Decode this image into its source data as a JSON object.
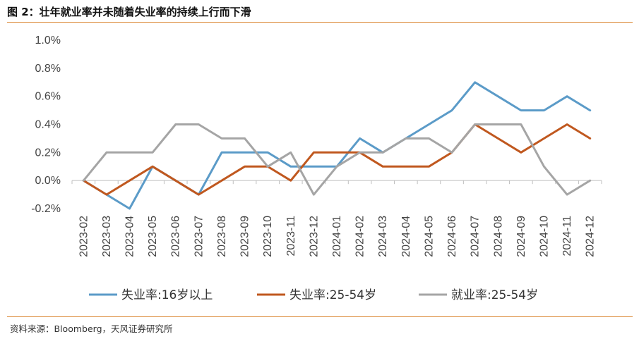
{
  "figure": {
    "title": "图 2：壮年就业率并未随着失业率的持续上行而下滑",
    "source": "资料来源：Bloomberg，天风证券研究所"
  },
  "chart_data": {
    "type": "line",
    "categories": [
      "2023-02",
      "2023-03",
      "2023-04",
      "2023-05",
      "2023-06",
      "2023-07",
      "2023-08",
      "2023-09",
      "2023-10",
      "2023-11",
      "2023-12",
      "2024-01",
      "2024-02",
      "2024-03",
      "2024-04",
      "2024-05",
      "2024-06",
      "2024-07",
      "2024-08",
      "2024-09",
      "2024-10",
      "2024-11",
      "2024-12"
    ],
    "ylim": [
      -0.2,
      1.0
    ],
    "yticks": [
      "-0.2%",
      "0.0%",
      "0.2%",
      "0.4%",
      "0.6%",
      "0.8%",
      "1.0%"
    ],
    "grid": false,
    "legend": "bottom",
    "series": [
      {
        "name": "失业率:16岁以上",
        "color": "#5b9bc8",
        "values": [
          0.0,
          -0.1,
          -0.2,
          0.1,
          0.0,
          -0.1,
          0.2,
          0.2,
          0.2,
          0.1,
          0.1,
          0.1,
          0.3,
          0.2,
          0.3,
          0.4,
          0.5,
          0.7,
          0.6,
          0.5,
          0.5,
          0.6,
          0.5
        ]
      },
      {
        "name": "失业率:25-54岁",
        "color": "#c0581f",
        "values": [
          0.0,
          -0.1,
          0.0,
          0.1,
          0.0,
          -0.1,
          0.0,
          0.1,
          0.1,
          0.0,
          0.2,
          0.2,
          0.2,
          0.1,
          0.1,
          0.1,
          0.2,
          0.4,
          0.3,
          0.2,
          0.3,
          0.4,
          0.3
        ]
      },
      {
        "name": "就业率:25-54岁",
        "color": "#a5a5a5",
        "values": [
          0.0,
          0.2,
          0.2,
          0.2,
          0.4,
          0.4,
          0.3,
          0.3,
          0.1,
          0.2,
          -0.1,
          0.1,
          0.2,
          0.2,
          0.3,
          0.3,
          0.2,
          0.4,
          0.4,
          0.4,
          0.1,
          -0.1,
          0.0
        ]
      }
    ]
  }
}
